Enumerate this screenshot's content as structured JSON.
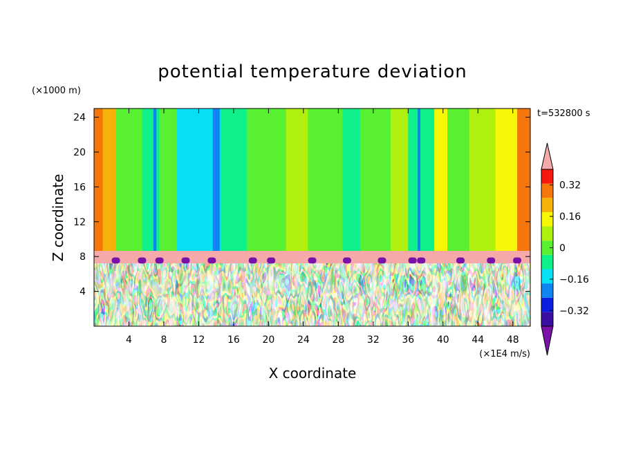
{
  "chart_data": {
    "type": "heatmap",
    "title": "potential temperature deviation",
    "xlabel": "X coordinate",
    "ylabel": "Z coordinate",
    "x_unit": "(×1E4 m/s)",
    "y_unit": "(×1000 m)",
    "time_label": "t=532800 s",
    "xlim": [
      0,
      50
    ],
    "ylim": [
      0,
      25
    ],
    "x_ticks": [
      4,
      8,
      12,
      16,
      20,
      24,
      28,
      32,
      36,
      40,
      44,
      48
    ],
    "y_ticks": [
      4,
      8,
      12,
      16,
      20,
      24
    ],
    "colorbar": {
      "levels": [
        -0.4,
        -0.32,
        -0.24,
        -0.16,
        -0.08,
        0,
        0.08,
        0.16,
        0.24,
        0.32,
        0.4
      ],
      "tick_labels": [
        "0.32",
        "0.16",
        "0",
        "−0.16",
        "−0.32"
      ],
      "tick_values": [
        0.32,
        0.16,
        0,
        -0.16,
        -0.32
      ],
      "colors_low_to_high": [
        "#7a11a8",
        "#3a0fa0",
        "#0a1fe0",
        "#0f84f2",
        "#06e0f5",
        "#0ef08a",
        "#58f030",
        "#b0f00e",
        "#f6f607",
        "#f5b20b",
        "#f5760a",
        "#f5180e",
        "#f6a9a9"
      ],
      "extend": "both"
    },
    "regions": [
      {
        "z_range": [
          8.5,
          25
        ],
        "description": "upper layer: smooth vertical bands, mostly 0 to 0.08"
      },
      {
        "z_range": [
          7.3,
          8.5
        ],
        "description": "thin inversion layer near 0.4 with purple bumps"
      },
      {
        "z_range": [
          0,
          7.3
        ],
        "description": "turbulent lower layer spanning full colour range"
      }
    ]
  }
}
